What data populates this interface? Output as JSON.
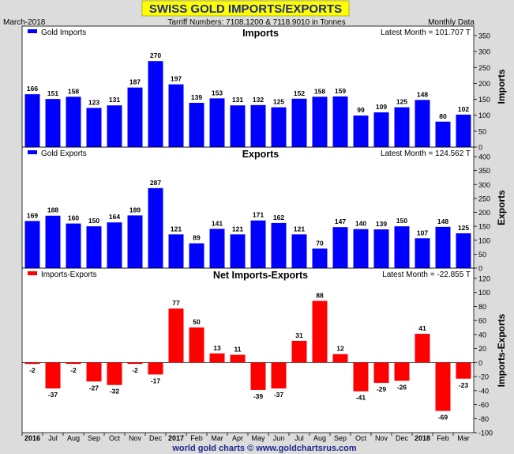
{
  "page": {
    "title": "SWISS GOLD IMPORTS/EXPORTS",
    "date_label": "March-2018",
    "tariff_label": "Tarriff Numbers: 7108.1200 & 7118.9010 in Tonnes",
    "frequency_label": "Monthly Data",
    "footer": "world gold charts © www.goldchartsrus.com"
  },
  "colors": {
    "imports": "#0000ff",
    "exports": "#0000ff",
    "net": "#ff0000",
    "title_bg": "#ffff00",
    "title_text": "#1c2a8c"
  },
  "chart_data": [
    {
      "type": "bar",
      "title": "Imports",
      "legend": "Gold Imports",
      "latest": "Latest Month = 101.707 T",
      "ylabel": "Imports",
      "ylim": [
        0,
        350
      ],
      "yticks": [
        0,
        50,
        100,
        150,
        200,
        250,
        300,
        350
      ],
      "tick_labels": [
        "0",
        "50",
        "100",
        "150",
        "200",
        "250",
        "300",
        "350"
      ],
      "categories": [
        "2016",
        "Jul",
        "Aug",
        "Sep",
        "Oct",
        "Nov",
        "Dec",
        "2017",
        "Feb",
        "Mar",
        "Apr",
        "May",
        "Jun",
        "Jul",
        "Aug",
        "Sep",
        "Oct",
        "Nov",
        "Dec",
        "2018",
        "Feb",
        "Mar"
      ],
      "values": [
        166,
        151,
        158,
        123,
        131,
        187,
        270,
        197,
        139,
        153,
        131,
        132,
        125,
        152,
        158,
        159,
        99,
        109,
        125,
        148,
        80,
        102
      ],
      "labels": [
        "166",
        "151",
        "158",
        "123",
        "131",
        "187",
        "270",
        "197",
        "139",
        "153",
        "131",
        "132",
        "125",
        "152",
        "158",
        "159",
        "99",
        "109",
        "125",
        "148",
        "80",
        "102"
      ]
    },
    {
      "type": "bar",
      "title": "Exports",
      "legend": "Gold Exports",
      "latest": "Latest Month = 124.562 T",
      "ylabel": "Exports",
      "ylim": [
        0,
        400
      ],
      "yticks": [
        0,
        50,
        100,
        150,
        200,
        250,
        300,
        350,
        400
      ],
      "tick_labels": [
        "0",
        "50",
        "100",
        "150",
        "200",
        "250",
        "300",
        "350",
        "400"
      ],
      "categories": [
        "2016",
        "Jul",
        "Aug",
        "Sep",
        "Oct",
        "Nov",
        "Dec",
        "2017",
        "Feb",
        "Mar",
        "Apr",
        "May",
        "Jun",
        "Jul",
        "Aug",
        "Sep",
        "Oct",
        "Nov",
        "Dec",
        "2018",
        "Feb",
        "Mar"
      ],
      "values": [
        169,
        188,
        160,
        150,
        164,
        189,
        287,
        121,
        89,
        141,
        121,
        171,
        162,
        121,
        70,
        147,
        140,
        139,
        150,
        107,
        148,
        125
      ],
      "labels": [
        "169",
        "188",
        "160",
        "150",
        "164",
        "189",
        "287",
        "121",
        "89",
        "141",
        "121",
        "171",
        "162",
        "121",
        "70",
        "147",
        "140",
        "139",
        "150",
        "107",
        "148",
        "125"
      ]
    },
    {
      "type": "bar",
      "title": "Net Imports-Exports",
      "legend": "Imports-Exports",
      "latest": "Latest Month = -22.855 T",
      "ylabel": "Imports-Exports",
      "ylim": [
        -100,
        120
      ],
      "yticks": [
        -100,
        -80,
        -60,
        -40,
        -20,
        0,
        20,
        40,
        60,
        80,
        100,
        120
      ],
      "tick_labels": [
        "-100",
        "-80",
        "-60",
        "-40",
        "-20",
        "0",
        "20",
        "40",
        "60",
        "80",
        "100",
        "120"
      ],
      "categories": [
        "2016",
        "Jul",
        "Aug",
        "Sep",
        "Oct",
        "Nov",
        "Dec",
        "2017",
        "Feb",
        "Mar",
        "Apr",
        "May",
        "Jun",
        "Jul",
        "Aug",
        "Sep",
        "Oct",
        "Nov",
        "Dec",
        "2018",
        "Feb",
        "Mar"
      ],
      "values": [
        -2,
        -37,
        -2,
        -27,
        -32,
        -2,
        -17,
        77,
        50,
        13,
        11,
        -39,
        -37,
        31,
        88,
        12,
        -41,
        -29,
        -26,
        41,
        -69,
        -23
      ],
      "labels": [
        "-2",
        "-37",
        "-2",
        "-27",
        "-32",
        "-2",
        "-17",
        "77",
        "50",
        "13",
        "11",
        "-39",
        "-37",
        "31",
        "88",
        "12",
        "-41",
        "-29",
        "-26",
        "41",
        "-69",
        "-23"
      ]
    }
  ],
  "x_axis": {
    "labels": [
      "2016",
      "Jul",
      "Aug",
      "Sep",
      "Oct",
      "Nov",
      "Dec",
      "2017",
      "Feb",
      "Mar",
      "Apr",
      "May",
      "Jun",
      "Jul",
      "Aug",
      "Sep",
      "Oct",
      "Nov",
      "Dec",
      "2018",
      "Feb",
      "Mar"
    ],
    "bold": [
      true,
      false,
      false,
      false,
      false,
      false,
      false,
      true,
      false,
      false,
      false,
      false,
      false,
      false,
      false,
      false,
      false,
      false,
      false,
      true,
      false,
      false
    ]
  }
}
